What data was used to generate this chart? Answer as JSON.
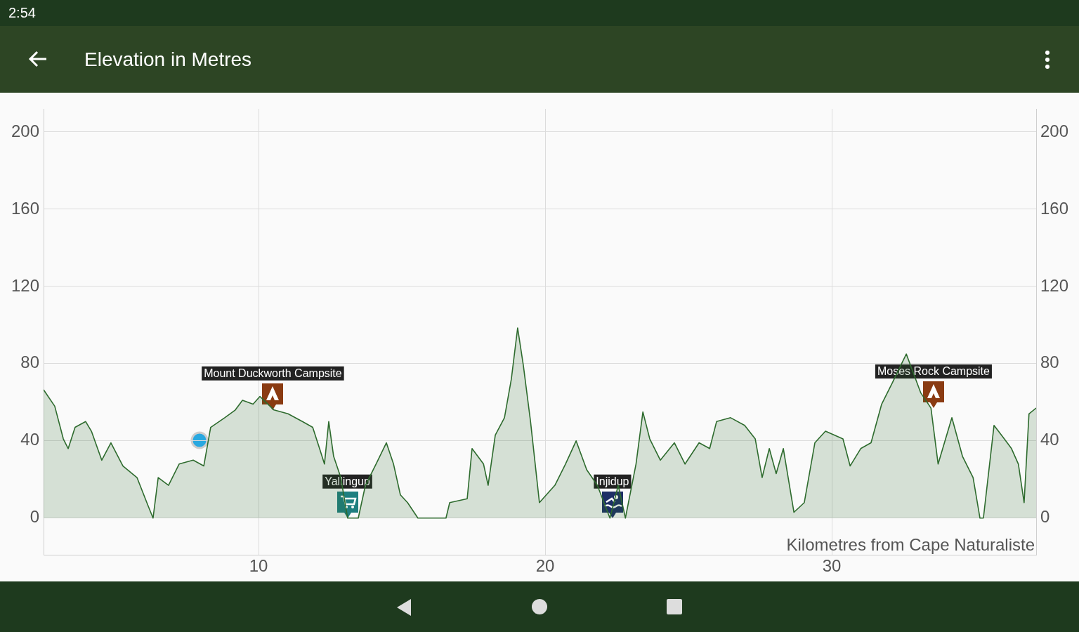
{
  "chart_data": {
    "type": "area",
    "title": "Elevation in Metres",
    "xlabel": "Kilometres from Cape Naturaliste",
    "xlim": [
      2.5,
      37.13
    ],
    "xticks": [
      10,
      20,
      30
    ],
    "ylim": [
      -19,
      212
    ],
    "yticks": [
      0,
      40,
      80,
      120,
      160,
      200
    ],
    "y2lim": [
      -19,
      212
    ],
    "y2ticks": [
      0,
      40,
      80,
      120,
      160,
      200
    ],
    "grid": true,
    "legend": false,
    "marker": "none",
    "line_style": "solid",
    "annotations": [
      "2:54",
      {
        "text": "Mount Duckworth Campsite",
        "x": 10.5,
        "y": 56
      },
      {
        "text": "Yallingup",
        "x": 13.1,
        "y": 0
      },
      {
        "text": "Injidup",
        "x": 22.35,
        "y": 0
      },
      {
        "text": "Moses Rock Campsite",
        "x": 33.55,
        "y": 57
      }
    ],
    "series": [
      {
        "color": "#2e6b2e",
        "x": [
          2.5,
          2.89,
          3.19,
          3.36,
          3.6,
          3.97,
          4.17,
          4.53,
          4.85,
          5.27,
          5.76,
          6.13,
          6.32,
          6.5,
          6.86,
          7.23,
          7.72,
          8.09,
          8.33,
          8.82,
          9.19,
          9.44,
          9.81,
          10.05,
          10.54,
          11.03,
          11.53,
          11.89,
          12.13,
          12.3,
          12.45,
          12.62,
          12.87,
          13.11,
          13.48,
          13.73,
          14.1,
          14.46,
          14.71,
          14.95,
          15.2,
          15.56,
          16.54,
          16.67,
          17.28,
          17.45,
          17.85,
          18.01,
          18.26,
          18.58,
          18.82,
          19.04,
          19.24,
          19.49,
          19.8,
          20.34,
          20.71,
          21.08,
          21.45,
          21.82,
          22.26,
          22.55,
          22.8,
          23.17,
          23.41,
          23.65,
          24.02,
          24.51,
          24.88,
          25.37,
          25.74,
          25.98,
          26.47,
          26.96,
          27.33,
          27.57,
          27.82,
          28.06,
          28.31,
          28.68,
          29.04,
          29.41,
          29.78,
          30.39,
          30.64,
          31.01,
          31.37,
          31.74,
          32.11,
          32.6,
          33.1,
          33.46,
          33.71,
          34.19,
          34.56,
          34.93,
          35.17,
          35.29,
          35.66,
          36.02,
          36.27,
          36.51,
          36.71,
          36.88,
          37.13
        ],
        "values": [
          66.5,
          58,
          41,
          36,
          47,
          50,
          45,
          30,
          39,
          27,
          21,
          7,
          0,
          21,
          17,
          28,
          30,
          27,
          47,
          52,
          56,
          61,
          59,
          63,
          56,
          54,
          50,
          47,
          36,
          28,
          50,
          32,
          21,
          0,
          0,
          17,
          28,
          39,
          28,
          12,
          8,
          0,
          0,
          8,
          10,
          36,
          28,
          17,
          43,
          52,
          72,
          98.5,
          79,
          50,
          8,
          17,
          28,
          40,
          25,
          17,
          0,
          17,
          0,
          28,
          55,
          41,
          30,
          39,
          28,
          39,
          36,
          50,
          52,
          48,
          41,
          21,
          36,
          23,
          36,
          3,
          8,
          39,
          45,
          41,
          27,
          36,
          39,
          59,
          70,
          85,
          65,
          57,
          28,
          52,
          32,
          21,
          0,
          0,
          48,
          41,
          36,
          28,
          8,
          54,
          57
        ]
      }
    ]
  }
}
